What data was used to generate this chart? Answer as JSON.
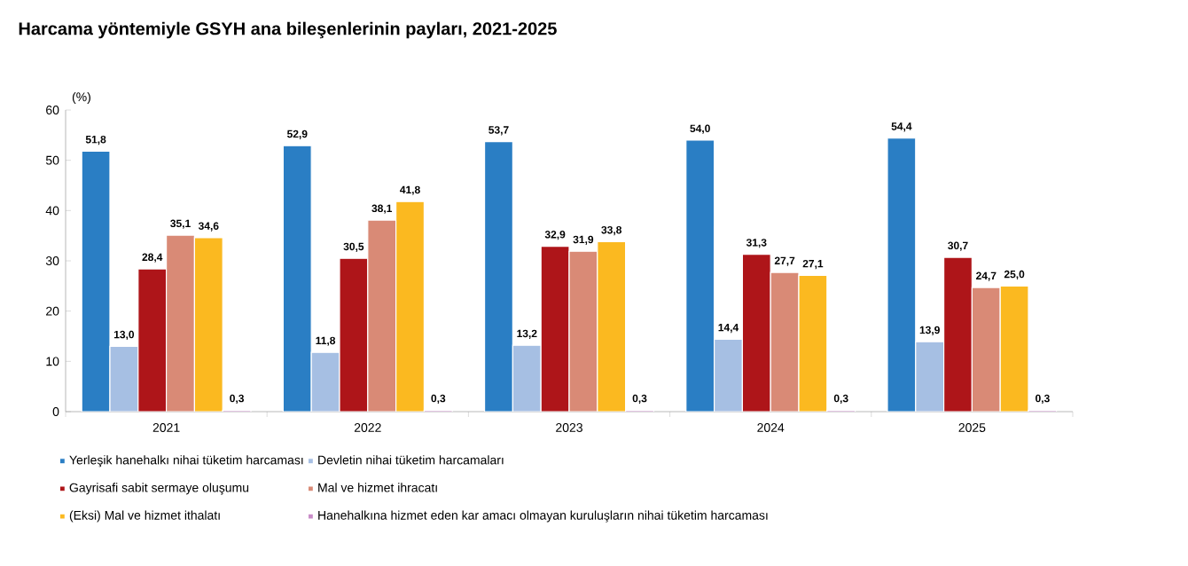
{
  "chart_data": {
    "type": "bar",
    "title": "Harcama yöntemiyle GSYH ana bileşenlerinin payları, 2021-2025",
    "ylabel": "(%)",
    "categories": [
      "2021",
      "2022",
      "2023",
      "2024",
      "2025"
    ],
    "series": [
      {
        "name": "Yerleşik hanehalkı nihai tüketim harcaması",
        "color": "#2a7ec4",
        "values": [
          51.8,
          52.9,
          53.7,
          54.0,
          54.4
        ],
        "value_labels": [
          "51,8",
          "52,9",
          "53,7",
          "54,0",
          "54,4"
        ]
      },
      {
        "name": "Devletin nihai tüketim harcamaları",
        "color": "#a6bfe3",
        "values": [
          13.0,
          11.8,
          13.2,
          14.4,
          13.9
        ],
        "value_labels": [
          "13,0",
          "11,8",
          "13,2",
          "14,4",
          "13,9"
        ]
      },
      {
        "name": "Gayrisafi sabit sermaye oluşumu",
        "color": "#ae1519",
        "values": [
          28.4,
          30.5,
          32.9,
          31.3,
          30.7
        ],
        "value_labels": [
          "28,4",
          "30,5",
          "32,9",
          "31,3",
          "30,7"
        ]
      },
      {
        "name": "Mal ve hizmet ihracatı",
        "color": "#d98a76",
        "values": [
          35.1,
          38.1,
          31.9,
          27.7,
          24.7
        ],
        "value_labels": [
          "35,1",
          "38,1",
          "31,9",
          "27,7",
          "24,7"
        ]
      },
      {
        "name": "(Eksi) Mal ve hizmet ithalatı",
        "color": "#fbb920",
        "values": [
          34.6,
          41.8,
          33.8,
          27.1,
          25.0
        ],
        "value_labels": [
          "34,6",
          "41,8",
          "33,8",
          "27,1",
          "25,0"
        ]
      },
      {
        "name": "Hanehalkına hizmet eden kar amacı olmayan kuruluşların nihai tüketim harcaması",
        "color": "#c98cc8",
        "values": [
          0.3,
          0.3,
          0.3,
          0.3,
          0.3
        ],
        "value_labels": [
          "0,3",
          "0,3",
          "0,3",
          "0,3",
          "0,3"
        ]
      }
    ],
    "ylim": [
      0,
      60
    ],
    "yticks": [
      0,
      10,
      20,
      30,
      40,
      50,
      60
    ],
    "grid": false,
    "legend": "bottom"
  }
}
